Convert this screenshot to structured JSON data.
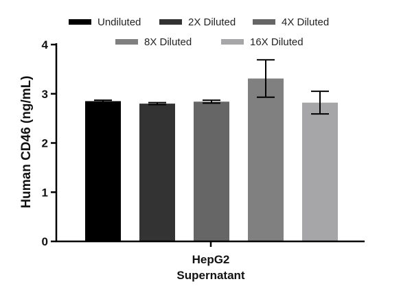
{
  "chart_data": {
    "type": "bar",
    "categories": [
      "HepG2",
      "Supernatant"
    ],
    "series": [
      {
        "name": "Undiluted",
        "value": 2.85,
        "error": 0.02,
        "color": "#000000"
      },
      {
        "name": "2X Diluted",
        "value": 2.8,
        "error": 0.02,
        "color": "#333333"
      },
      {
        "name": "4X Diluted",
        "value": 2.84,
        "error": 0.03,
        "color": "#666666"
      },
      {
        "name": "8X Diluted",
        "value": 3.31,
        "error": 0.38,
        "color": "#808080"
      },
      {
        "name": "16X Diluted",
        "value": 2.82,
        "error": 0.23,
        "color": "#a6a6a8"
      }
    ],
    "ylabel": "Human CD46 (ng/mL)",
    "xlabel": "",
    "ylim": [
      0,
      4
    ],
    "yticks": [
      "0",
      "1",
      "2",
      "3",
      "4"
    ],
    "legend": "top"
  }
}
